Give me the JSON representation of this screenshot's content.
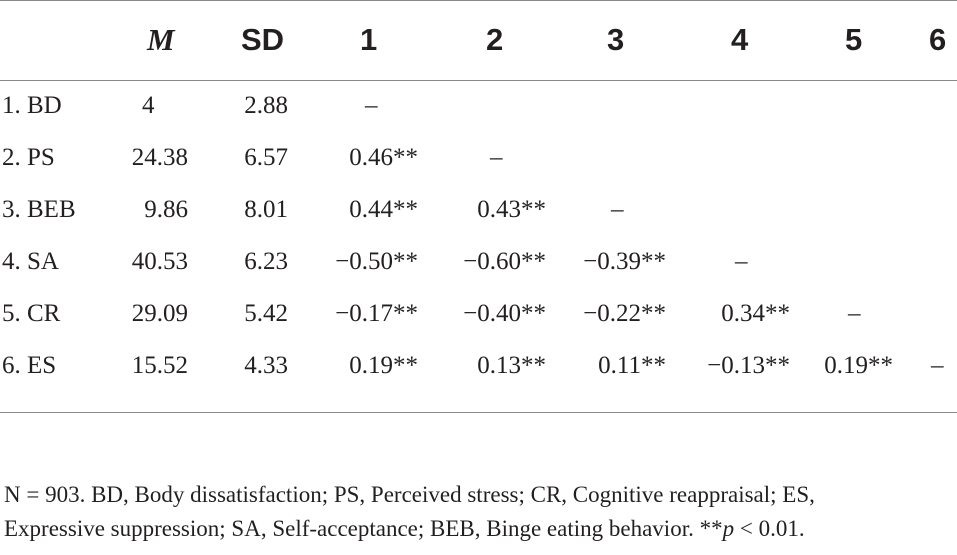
{
  "table": {
    "headers": [
      "M",
      "SD",
      "1",
      "2",
      "3",
      "4",
      "5",
      "6"
    ],
    "rows": [
      {
        "label": "1. BD",
        "cells": [
          "4",
          "2.88",
          "–",
          "",
          "",
          "",
          "",
          ""
        ]
      },
      {
        "label": "2. PS",
        "cells": [
          "24.38",
          "6.57",
          "0.46**",
          "–",
          "",
          "",
          "",
          ""
        ]
      },
      {
        "label": "3. BEB",
        "cells": [
          "9.86",
          "8.01",
          "0.44**",
          "0.43**",
          "–",
          "",
          "",
          ""
        ]
      },
      {
        "label": "4. SA",
        "cells": [
          "40.53",
          "6.23",
          "−0.50**",
          "−0.60**",
          "−0.39**",
          "–",
          "",
          ""
        ]
      },
      {
        "label": "5. CR",
        "cells": [
          "29.09",
          "5.42",
          "−0.17**",
          "−0.40**",
          "−0.22**",
          "0.34**",
          "–",
          ""
        ]
      },
      {
        "label": "6. ES",
        "cells": [
          "15.52",
          "4.33",
          "0.19**",
          "0.13**",
          "0.11**",
          "−0.13**",
          "0.19**",
          "–"
        ]
      }
    ]
  },
  "footnote": {
    "line1": "N = 903. BD, Body dissatisfaction; PS, Perceived stress; CR, Cognitive reappraisal; ES,",
    "line2_pre": "Expressive suppression; SA, Self-acceptance; BEB, Binge eating behavior. **",
    "line2_p": "p",
    "line2_post": " < 0.01."
  }
}
